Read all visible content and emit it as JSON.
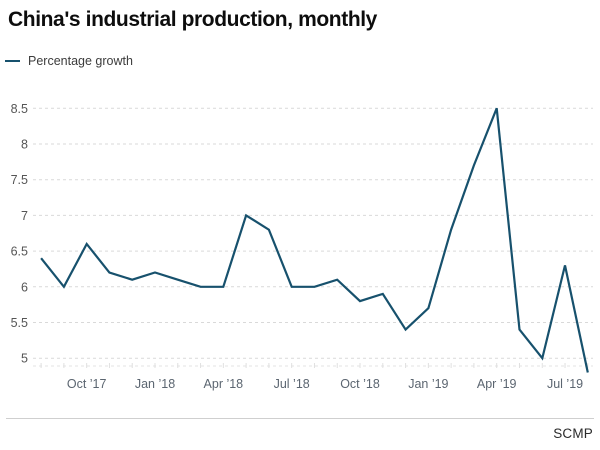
{
  "page": {
    "title": "China's industrial production, monthly"
  },
  "legend": {
    "label": "Percentage growth"
  },
  "footer": {
    "source": "SCMP"
  },
  "colors": {
    "line": "#17516d",
    "grid": "#d9d9d9",
    "axis_baseline": "#e3e3e3",
    "month_tick": "#e0e0e0",
    "y_label": "#555555",
    "x_label": "#5b6570",
    "title": "#0d0d0d",
    "legend_text": "#3c3c3c",
    "divider": "#cfcfcf",
    "source_text": "#2b2b2b"
  },
  "chart_data": {
    "type": "line",
    "title": "China's industrial production, monthly",
    "unit": "percent",
    "grid": "horizontal-dashed",
    "legend_position": "top-left",
    "series": [
      {
        "name": "Percentage growth",
        "color": "#17516d",
        "values": [
          6.4,
          6.0,
          6.6,
          6.2,
          6.1,
          6.2,
          6.1,
          6.0,
          6.0,
          7.0,
          6.8,
          6.0,
          6.0,
          6.1,
          5.8,
          5.9,
          5.4,
          5.7,
          6.8,
          7.7,
          8.5,
          5.4,
          5.0,
          6.3,
          4.8
        ]
      }
    ],
    "x_tick_labels": [
      "Oct ’17",
      "Jan ’18",
      "Apr ’18",
      "Jul ’18",
      "Oct ’18",
      "Jan ’19",
      "Apr ’19",
      "Jul ’19"
    ],
    "x_tick_point_indices": [
      2,
      5,
      8,
      11,
      14,
      17,
      20,
      23
    ],
    "y_tick_labels": [
      "8.5",
      "8",
      "7.5",
      "7",
      "6.5",
      "6",
      "5.5",
      "5"
    ],
    "y_axis_range_shown": [
      5,
      8.5
    ]
  }
}
